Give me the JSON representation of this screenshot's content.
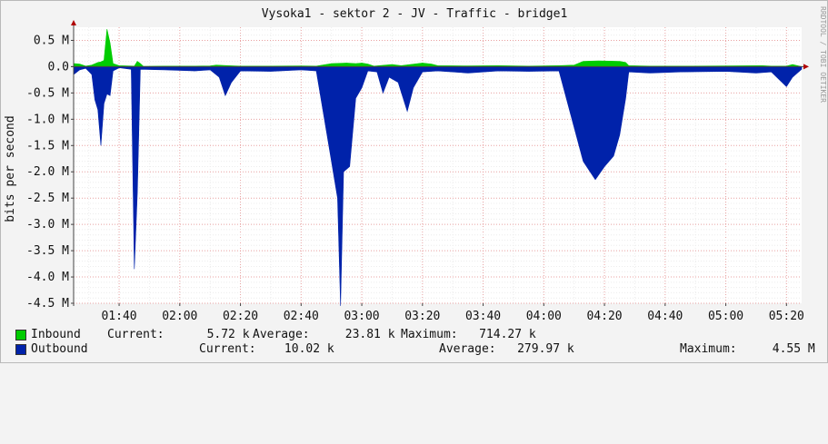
{
  "chart_data": {
    "type": "area",
    "title": "Vysoka1 - sektor 2 - JV - Traffic - bridge1",
    "ylabel": "bits per second",
    "watermark": "RRDTOOL / TOBI OETIKER",
    "ylim": [
      -4500000,
      750000
    ],
    "yticks": [
      {
        "v": 500000,
        "label": "0.5 M"
      },
      {
        "v": 0,
        "label": "0.0"
      },
      {
        "v": -500000,
        "label": "-0.5 M"
      },
      {
        "v": -1000000,
        "label": "-1.0 M"
      },
      {
        "v": -1500000,
        "label": "-1.5 M"
      },
      {
        "v": -2000000,
        "label": "-2.0 M"
      },
      {
        "v": -2500000,
        "label": "-2.5 M"
      },
      {
        "v": -3000000,
        "label": "-3.0 M"
      },
      {
        "v": -3500000,
        "label": "-3.5 M"
      },
      {
        "v": -4000000,
        "label": "-4.0 M"
      },
      {
        "v": -4500000,
        "label": "-4.5 M"
      }
    ],
    "x_start": "01:25",
    "x_end": "05:25",
    "xticks": [
      "01:40",
      "02:00",
      "02:20",
      "02:40",
      "03:00",
      "03:20",
      "03:40",
      "04:00",
      "04:20",
      "04:40",
      "05:00",
      "05:20"
    ],
    "grid": true,
    "series": [
      {
        "name": "Inbound",
        "color": "#00cc00",
        "points": [
          [
            "01:25",
            60000
          ],
          [
            "01:27",
            50000
          ],
          [
            "01:29",
            10000
          ],
          [
            "01:31",
            30000
          ],
          [
            "01:33",
            80000
          ],
          [
            "01:34",
            90000
          ],
          [
            "01:35",
            120000
          ],
          [
            "01:36",
            714270
          ],
          [
            "01:37",
            450000
          ],
          [
            "01:38",
            60000
          ],
          [
            "01:40",
            20000
          ],
          [
            "01:45",
            10000
          ],
          [
            "01:46",
            100000
          ],
          [
            "01:47",
            60000
          ],
          [
            "01:48",
            5000
          ],
          [
            "01:55",
            10000
          ],
          [
            "02:05",
            10000
          ],
          [
            "02:10",
            15000
          ],
          [
            "02:12",
            30000
          ],
          [
            "02:16",
            20000
          ],
          [
            "02:20",
            10000
          ],
          [
            "02:30",
            10000
          ],
          [
            "02:40",
            15000
          ],
          [
            "02:45",
            10000
          ],
          [
            "02:50",
            60000
          ],
          [
            "02:55",
            70000
          ],
          [
            "02:58",
            60000
          ],
          [
            "03:00",
            70000
          ],
          [
            "03:02",
            50000
          ],
          [
            "03:04",
            10000
          ],
          [
            "03:10",
            40000
          ],
          [
            "03:13",
            20000
          ],
          [
            "03:20",
            70000
          ],
          [
            "03:23",
            50000
          ],
          [
            "03:25",
            20000
          ],
          [
            "03:35",
            15000
          ],
          [
            "03:45",
            20000
          ],
          [
            "03:55",
            10000
          ],
          [
            "04:05",
            20000
          ],
          [
            "04:10",
            30000
          ],
          [
            "04:13",
            100000
          ],
          [
            "04:18",
            110000
          ],
          [
            "04:25",
            100000
          ],
          [
            "04:27",
            80000
          ],
          [
            "04:28",
            20000
          ],
          [
            "04:35",
            10000
          ],
          [
            "04:45",
            10000
          ],
          [
            "05:00",
            15000
          ],
          [
            "05:12",
            20000
          ],
          [
            "05:15",
            10000
          ],
          [
            "05:20",
            10000
          ],
          [
            "05:22",
            40000
          ],
          [
            "05:25",
            0
          ]
        ]
      },
      {
        "name": "Outbound",
        "color": "#0022aa",
        "points": [
          [
            "01:25",
            -150000
          ],
          [
            "01:27",
            -60000
          ],
          [
            "01:29",
            -30000
          ],
          [
            "01:31",
            -150000
          ],
          [
            "01:32",
            -630000
          ],
          [
            "01:33",
            -820000
          ],
          [
            "01:34",
            -1500000
          ],
          [
            "01:35",
            -700000
          ],
          [
            "01:36",
            -520000
          ],
          [
            "01:37",
            -550000
          ],
          [
            "01:38",
            -80000
          ],
          [
            "01:40",
            -20000
          ],
          [
            "01:44",
            -50000
          ],
          [
            "01:45",
            -3850000
          ],
          [
            "01:46",
            -2400000
          ],
          [
            "01:47",
            -50000
          ],
          [
            "01:55",
            -60000
          ],
          [
            "02:05",
            -80000
          ],
          [
            "02:10",
            -60000
          ],
          [
            "02:13",
            -200000
          ],
          [
            "02:15",
            -550000
          ],
          [
            "02:17",
            -300000
          ],
          [
            "02:20",
            -80000
          ],
          [
            "02:30",
            -90000
          ],
          [
            "02:40",
            -60000
          ],
          [
            "02:45",
            -80000
          ],
          [
            "02:50",
            -1800000
          ],
          [
            "02:52",
            -2500000
          ],
          [
            "02:53",
            -4550000
          ],
          [
            "02:54",
            -2000000
          ],
          [
            "02:56",
            -1900000
          ],
          [
            "02:58",
            -600000
          ],
          [
            "03:00",
            -400000
          ],
          [
            "03:02",
            -80000
          ],
          [
            "03:05",
            -100000
          ],
          [
            "03:07",
            -500000
          ],
          [
            "03:09",
            -200000
          ],
          [
            "03:12",
            -300000
          ],
          [
            "03:15",
            -850000
          ],
          [
            "03:17",
            -400000
          ],
          [
            "03:20",
            -100000
          ],
          [
            "03:25",
            -80000
          ],
          [
            "03:35",
            -120000
          ],
          [
            "03:45",
            -80000
          ],
          [
            "03:55",
            -90000
          ],
          [
            "04:05",
            -80000
          ],
          [
            "04:13",
            -1800000
          ],
          [
            "04:17",
            -2150000
          ],
          [
            "04:20",
            -1900000
          ],
          [
            "04:23",
            -1700000
          ],
          [
            "04:25",
            -1300000
          ],
          [
            "04:27",
            -600000
          ],
          [
            "04:28",
            -100000
          ],
          [
            "04:35",
            -120000
          ],
          [
            "04:45",
            -100000
          ],
          [
            "05:00",
            -90000
          ],
          [
            "05:10",
            -120000
          ],
          [
            "05:15",
            -100000
          ],
          [
            "05:20",
            -380000
          ],
          [
            "05:22",
            -200000
          ],
          [
            "05:25",
            -50000
          ]
        ]
      }
    ]
  },
  "legend": [
    {
      "name": "Inbound",
      "color": "#00cc00",
      "current": "Current:      5.72 k",
      "average": "Average:     23.81 k",
      "maximum": "Maximum:   714.27 k"
    },
    {
      "name": "Outbound",
      "color": "#0022aa",
      "current": "Current:    10.02 k",
      "average": "Average:   279.97 k",
      "maximum": "Maximum:     4.55 M"
    }
  ]
}
